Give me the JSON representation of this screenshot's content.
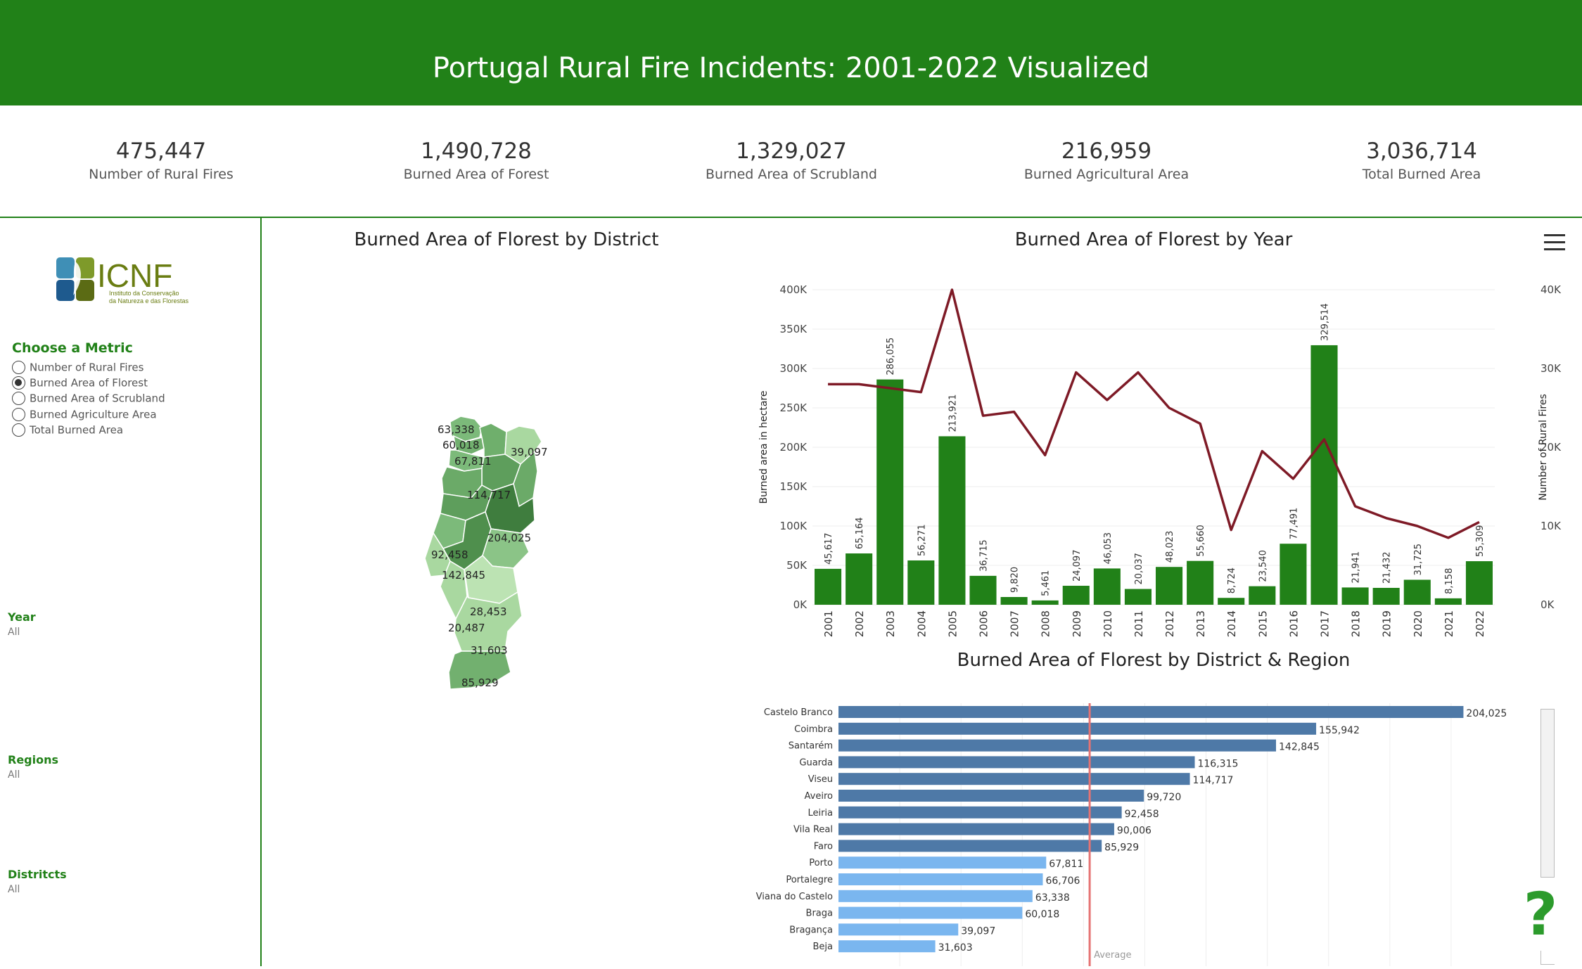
{
  "header": {
    "title": "Portugal Rural Fire Incidents: 2001-2022 Visualized"
  },
  "kpis": [
    {
      "value": "475,447",
      "label": "Number of Rural Fires"
    },
    {
      "value": "1,490,728",
      "label": "Burned Area of Forest"
    },
    {
      "value": "1,329,027",
      "label": "Burned Area of Scrubland"
    },
    {
      "value": "216,959",
      "label": "Burned Agricultural Area"
    },
    {
      "value": "3,036,714",
      "label": "Total Burned Area"
    }
  ],
  "sidebar": {
    "logo_text": "ICNF",
    "logo_subtitle_1": "Instituto da Conservação",
    "logo_subtitle_2": "da Natureza e das Florestas",
    "metric_heading": "Choose a Metric",
    "metrics": [
      {
        "label": "Number of Rural Fires",
        "selected": false
      },
      {
        "label": "Burned Area of Florest",
        "selected": true
      },
      {
        "label": "Burned Area of Scrubland",
        "selected": false
      },
      {
        "label": "Burned Agriculture Area",
        "selected": false
      },
      {
        "label": "Total Burned Area",
        "selected": false
      }
    ],
    "filters": [
      {
        "label": "Year",
        "value": "All"
      },
      {
        "label": "Regions",
        "value": "All"
      },
      {
        "label": "Distritcts",
        "value": "All"
      }
    ]
  },
  "map_panel": {
    "title": "Burned Area of Florest by District",
    "labels": [
      "63,338",
      "60,018",
      "39,097",
      "67,811",
      "114,717",
      "204,025",
      "92,458",
      "142,845",
      "28,453",
      "20,487",
      "31,603",
      "85,929"
    ]
  },
  "colors": {
    "header_green": "#218118",
    "bar_green": "#218118",
    "line_red": "#7e1a26",
    "bar_dark_blue": "#4e79a7",
    "bar_light_blue": "#7ab6ef",
    "average_line": "#e57373"
  },
  "icons": {
    "menu": "hamburger-menu-icon",
    "help": "question-mark-icon"
  },
  "chart_data": [
    {
      "type": "bar",
      "title": "Burned Area of Florest  by Year",
      "xlabel": "",
      "ylabel": "Burned area in hectare",
      "y2label": "Number of Rural Fires",
      "categories": [
        "2001",
        "2002",
        "2003",
        "2004",
        "2005",
        "2006",
        "2007",
        "2008",
        "2009",
        "2010",
        "2011",
        "2012",
        "2013",
        "2014",
        "2015",
        "2016",
        "2017",
        "2018",
        "2019",
        "2020",
        "2021",
        "2022"
      ],
      "series": [
        {
          "type": "bar",
          "axis": "left",
          "values": [
            45617,
            65164,
            286055,
            56271,
            213921,
            36715,
            9820,
            5461,
            24097,
            46053,
            20037,
            48023,
            55660,
            8724,
            23540,
            77491,
            329514,
            21941,
            21432,
            31725,
            8158,
            55309
          ]
        },
        {
          "type": "line",
          "axis": "right",
          "values": [
            28000,
            28000,
            27500,
            27000,
            40000,
            24000,
            24500,
            19000,
            29500,
            26000,
            29500,
            25000,
            23000,
            9500,
            19500,
            16000,
            21000,
            12500,
            11000,
            10000,
            8500,
            10500
          ]
        }
      ],
      "value_labels": [
        "45,617",
        "65,164",
        "286,055",
        "56,271",
        "213,921",
        "36,715",
        "9,820",
        "5,461",
        "24,097",
        "46,053",
        "20,037",
        "48,023",
        "55,660",
        "8,724",
        "23,540",
        "77,491",
        "329,514",
        "21,941",
        "21,432",
        "31,725",
        "8,158",
        "55,309"
      ],
      "ylim": [
        0,
        400000
      ],
      "y_ticks": [
        "0K",
        "50K",
        "100K",
        "150K",
        "200K",
        "250K",
        "300K",
        "350K",
        "400K"
      ],
      "y2lim": [
        0,
        40000
      ],
      "y2_ticks": [
        "0K",
        "10K",
        "20K",
        "30K",
        "40K"
      ],
      "grid": true
    },
    {
      "type": "bar",
      "orientation": "horizontal",
      "title": "Burned Area of Florest by District & Region",
      "categories": [
        "Castelo Branco",
        "Coimbra",
        "Santarém",
        "Guarda",
        "Viseu",
        "Aveiro",
        "Leiria",
        "Vila Real",
        "Faro",
        "Porto",
        "Portalegre",
        "Viana do Castelo",
        "Braga",
        "Bragança",
        "Beja"
      ],
      "values": [
        204025,
        155942,
        142845,
        116315,
        114717,
        99720,
        92458,
        90006,
        85929,
        67811,
        66706,
        63338,
        60018,
        39097,
        31603
      ],
      "value_labels": [
        "204,025",
        "155,942",
        "142,845",
        "116,315",
        "114,717",
        "99,720",
        "92,458",
        "90,006",
        "85,929",
        "67,811",
        "66,706",
        "63,338",
        "60,018",
        "39,097",
        "31,603"
      ],
      "above_average": [
        true,
        true,
        true,
        true,
        true,
        true,
        true,
        true,
        true,
        false,
        false,
        false,
        false,
        false,
        false
      ],
      "average_label": "Average",
      "average_value": 82000,
      "xlim": [
        0,
        220000
      ],
      "grid": true
    }
  ]
}
